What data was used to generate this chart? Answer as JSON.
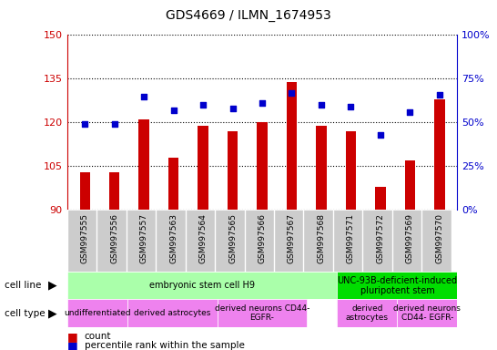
{
  "title": "GDS4669 / ILMN_1674953",
  "samples": [
    "GSM997555",
    "GSM997556",
    "GSM997557",
    "GSM997563",
    "GSM997564",
    "GSM997565",
    "GSM997566",
    "GSM997567",
    "GSM997568",
    "GSM997571",
    "GSM997572",
    "GSM997569",
    "GSM997570"
  ],
  "count_values": [
    103,
    103,
    121,
    108,
    119,
    117,
    120,
    134,
    119,
    117,
    98,
    107,
    128
  ],
  "percentile_values": [
    49,
    49,
    65,
    57,
    60,
    58,
    61,
    67,
    60,
    59,
    43,
    56,
    66
  ],
  "ylim_left": [
    90,
    150
  ],
  "ylim_right": [
    0,
    100
  ],
  "yticks_left": [
    90,
    105,
    120,
    135,
    150
  ],
  "yticks_right": [
    0,
    25,
    50,
    75,
    100
  ],
  "bar_color": "#cc0000",
  "scatter_color": "#0000cc",
  "bar_width": 0.35,
  "cell_line_groups": [
    {
      "label": "embryonic stem cell H9",
      "start": 0,
      "end": 8,
      "color": "#aaffaa"
    },
    {
      "label": "UNC-93B-deficient-induced\npluripotent stem",
      "start": 9,
      "end": 12,
      "color": "#00dd00"
    }
  ],
  "cell_type_groups": [
    {
      "label": "undifferentiated",
      "start": 0,
      "end": 1,
      "color": "#ee82ee"
    },
    {
      "label": "derived astrocytes",
      "start": 2,
      "end": 4,
      "color": "#ee82ee"
    },
    {
      "label": "derived neurons CD44-\nEGFR-",
      "start": 5,
      "end": 7,
      "color": "#ee82ee"
    },
    {
      "label": "derived\nastrocytes",
      "start": 9,
      "end": 10,
      "color": "#ee82ee"
    },
    {
      "label": "derived neurons\nCD44- EGFR-",
      "start": 11,
      "end": 12,
      "color": "#ee82ee"
    }
  ],
  "left_axis_color": "#cc0000",
  "right_axis_color": "#0000cc",
  "sample_bg_color": "#cccccc",
  "cell_line_light_green": "#bbffbb",
  "cell_line_dark_green": "#00cc00"
}
